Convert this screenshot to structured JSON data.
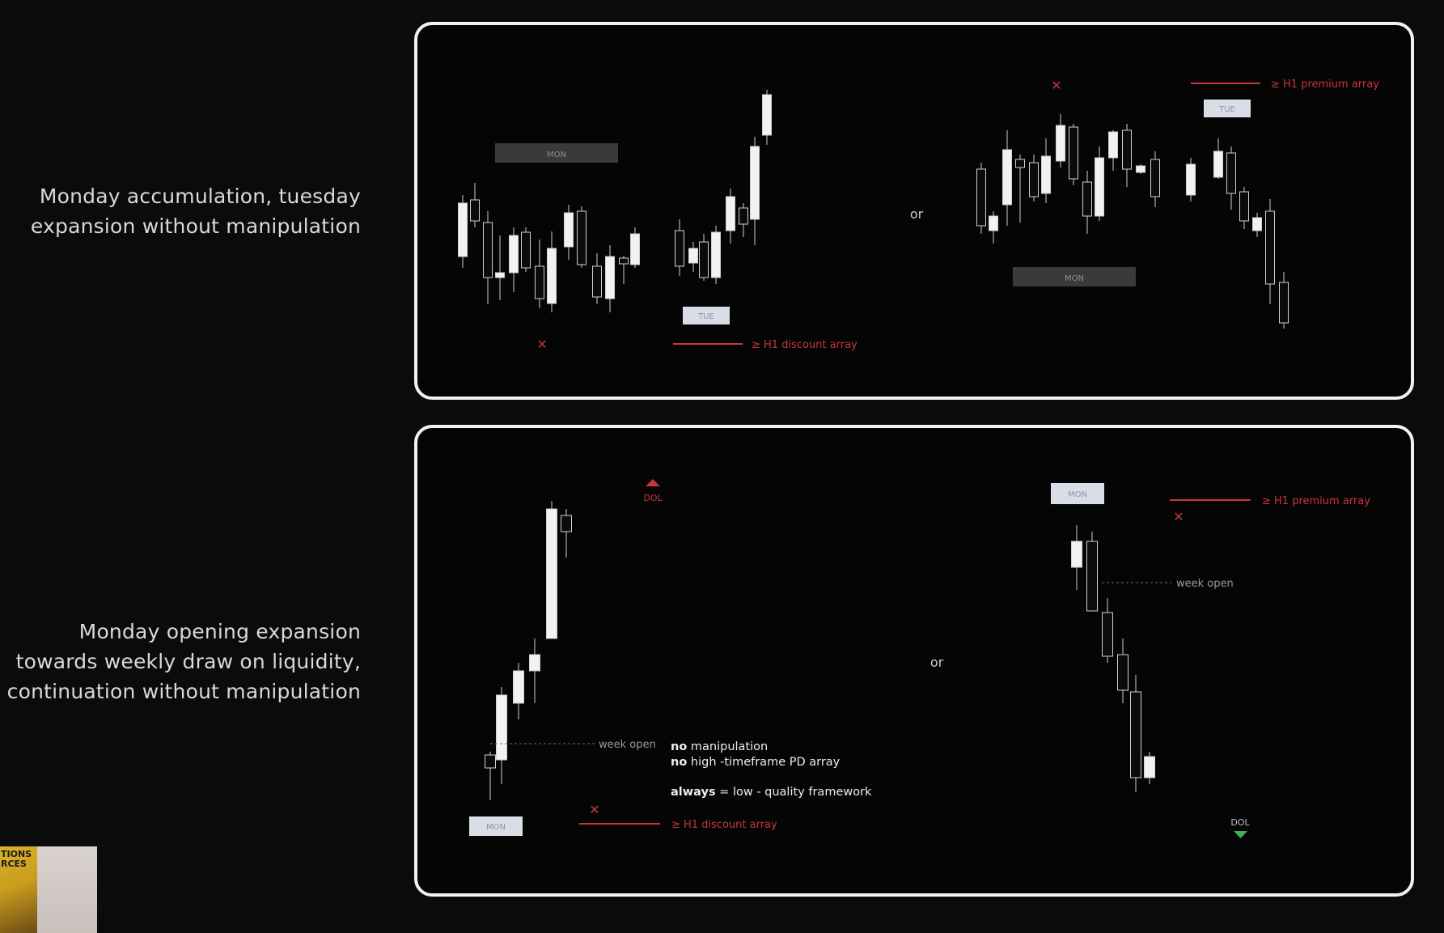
{
  "captions": {
    "scenario_1": [
      "Monday accumulation, tuesday",
      "expansion without manipulation"
    ],
    "scenario_2": [
      "Monday opening expansion",
      "towards weekly draw on liquidity,",
      "continuation without manipulation"
    ]
  },
  "panel_top": {
    "separator": "or",
    "left": {
      "day_labels": {
        "mon": "MON",
        "tue": "TUE"
      },
      "array_label": "≥ H1 discount array",
      "invalid_marker": "✕"
    },
    "right": {
      "day_labels": {
        "mon": "MON",
        "tue": "TUE"
      },
      "array_label": "≥ H1 premium array",
      "invalid_marker": "✕"
    }
  },
  "panel_bottom": {
    "separator": "or",
    "left": {
      "day_label": "MON",
      "week_open_label": "week open",
      "dol_label": "DOL",
      "array_label": "≥ H1 discount array",
      "invalid_marker": "✕"
    },
    "right": {
      "day_label": "MON",
      "week_open_label": "week open",
      "dol_label": "DOL",
      "array_label": "≥ H1 premium array",
      "invalid_marker": "✕"
    },
    "notes": [
      {
        "bold": "no",
        "text": " manipulation"
      },
      {
        "bold": "no",
        "text": " high -timeframe PD array"
      },
      {
        "bold": "always",
        "text": " = low - quality framework"
      }
    ]
  },
  "colors": {
    "red": "#c9353e",
    "green": "#3fae5a",
    "candle_bull": "#f2f2f2",
    "candle_bear": "#0b0b0b",
    "wick": "#d0d0d0",
    "day_label_dark": "#3a3a3a",
    "day_label_light": "#d8dde6"
  },
  "thumbnail": {
    "poster_lines": [
      "TIONS",
      "RCES"
    ]
  }
}
